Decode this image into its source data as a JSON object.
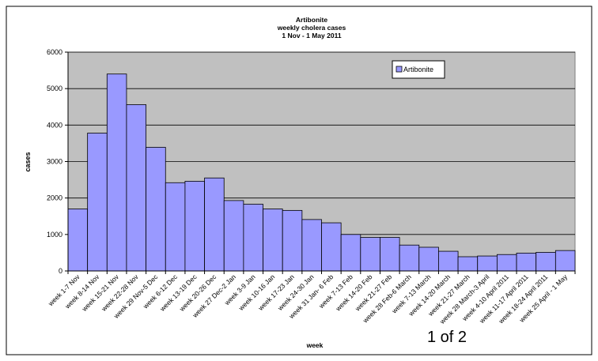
{
  "chart_data": {
    "type": "bar",
    "title_lines": [
      "Artibonite",
      "weekly cholera cases",
      "1 Nov - 1 May 2011"
    ],
    "xlabel": "week",
    "ylabel": "cases",
    "ylim": [
      0,
      6000
    ],
    "yticks": [
      0,
      1000,
      2000,
      3000,
      4000,
      5000,
      6000
    ],
    "grid": true,
    "legend_position": "top-right",
    "categories": [
      "week 1-7 Nov",
      "week 8-14 Nov",
      "week 15-21 Nov",
      "week 22-28 Nov",
      "week 29 Nov-5 Dec",
      "week 6-12 Dec",
      "week 13-19 Dec",
      "week 20-26 Dec",
      "week 27 Dec-2 Jan",
      "week 3-9 Jan",
      "week 10-16 Jan",
      "week 17-23 Jan",
      "week 24-30 Jan",
      "week 31 Jan- 6 Feb",
      "week 7-13 Feb",
      "week 14-20 Feb",
      "week 21-27 Feb",
      "week 28 Feb-6 March",
      "week 7-13 March",
      "week 14-20 March",
      "week 21-27 March",
      "week 28 March-3 April",
      "week 4-10 April 2011",
      "week 11-17 April 2011",
      "week 18-24 April 2011",
      "week 25 April - 1 May"
    ],
    "series": [
      {
        "name": "Artibonite",
        "values": [
          1700,
          3780,
          5400,
          4560,
          3390,
          2420,
          2460,
          2550,
          1930,
          1830,
          1700,
          1660,
          1410,
          1320,
          1000,
          920,
          920,
          710,
          650,
          540,
          390,
          410,
          450,
          490,
          510,
          560
        ]
      }
    ],
    "colors": {
      "bar_fill": "#9999ff",
      "bar_stroke": "#000000",
      "plot_background": "#c0c0c0",
      "gridline": "#000000"
    }
  },
  "page_label": "1 of 2"
}
